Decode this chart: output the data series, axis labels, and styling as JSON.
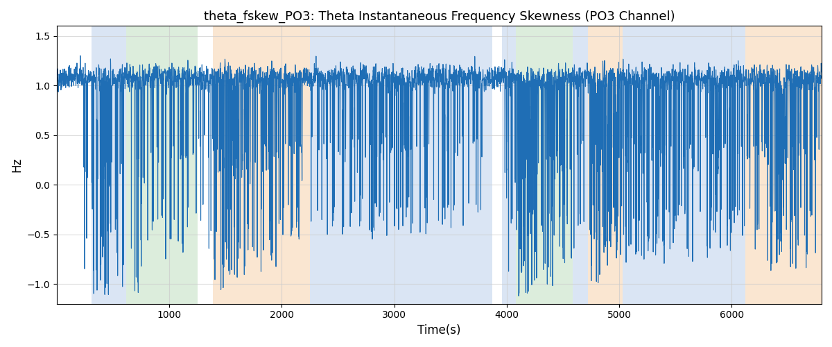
{
  "title": "theta_fskew_PO3: Theta Instantaneous Frequency Skewness (PO3 Channel)",
  "xlabel": "Time(s)",
  "ylabel": "Hz",
  "xlim": [
    0,
    6800
  ],
  "ylim": [
    -1.2,
    1.6
  ],
  "line_color": "#1f6eb5",
  "line_width": 0.8,
  "bg_bands": [
    {
      "xmin": 310,
      "xmax": 620,
      "color": "#aec6e8",
      "alpha": 0.45
    },
    {
      "xmin": 620,
      "xmax": 1250,
      "color": "#b2d8b2",
      "alpha": 0.45
    },
    {
      "xmin": 1390,
      "xmax": 2250,
      "color": "#f5c89a",
      "alpha": 0.45
    },
    {
      "xmin": 2250,
      "xmax": 3870,
      "color": "#aec6e8",
      "alpha": 0.45
    },
    {
      "xmin": 3960,
      "xmax": 4080,
      "color": "#aec6e8",
      "alpha": 0.45
    },
    {
      "xmin": 4080,
      "xmax": 4590,
      "color": "#b2d8b2",
      "alpha": 0.45
    },
    {
      "xmin": 4590,
      "xmax": 4720,
      "color": "#aec6e8",
      "alpha": 0.45
    },
    {
      "xmin": 4720,
      "xmax": 5030,
      "color": "#f5c89a",
      "alpha": 0.45
    },
    {
      "xmin": 5030,
      "xmax": 6120,
      "color": "#aec6e8",
      "alpha": 0.45
    },
    {
      "xmin": 6120,
      "xmax": 6270,
      "color": "#f5c89a",
      "alpha": 0.45
    },
    {
      "xmin": 6270,
      "xmax": 6800,
      "color": "#f5c89a",
      "alpha": 0.45
    }
  ],
  "grid_color": "#cccccc",
  "grid_alpha": 0.7,
  "yticks": [
    -1.0,
    -0.5,
    0.0,
    0.5,
    1.0,
    1.5
  ],
  "xticks": [
    1000,
    2000,
    3000,
    4000,
    5000,
    6000
  ],
  "seed": 42,
  "n_points": 6800,
  "base_value": 1.08,
  "noise_scale": 0.1
}
